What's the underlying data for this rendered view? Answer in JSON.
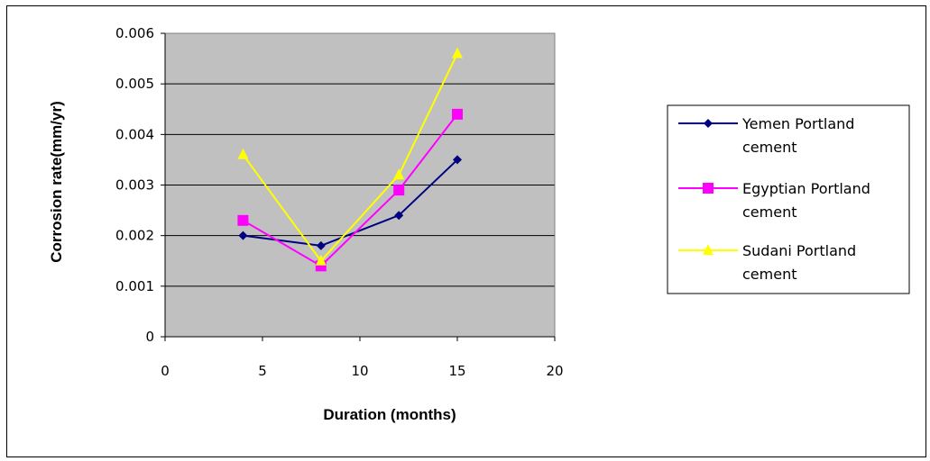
{
  "chart_data": {
    "type": "line",
    "title": "",
    "xlabel": "Duration (months)",
    "ylabel": "Corrosion rate(mm/yr)",
    "xlim": [
      0,
      20
    ],
    "ylim": [
      0,
      0.006
    ],
    "x_ticks": [
      "0",
      "5",
      "10",
      "15",
      "20"
    ],
    "y_ticks": [
      "0",
      "0.001",
      "0.002",
      "0.003",
      "0.004",
      "0.005",
      "0.006"
    ],
    "grid": "horizontal major gridlines",
    "plot_background": "#c0c0c0",
    "legend_position": "right",
    "series": [
      {
        "name": "Yemen  Portland cement",
        "legend_lines": [
          "Yemen  Portland",
          "cement"
        ],
        "color": "#000080",
        "marker": "diamond",
        "x": [
          4,
          8,
          12,
          15
        ],
        "y": [
          0.002,
          0.0018,
          0.0024,
          0.0035
        ]
      },
      {
        "name": "Egyptian Portland cement",
        "legend_lines": [
          "Egyptian Portland",
          "cement"
        ],
        "color": "#ff00ff",
        "marker": "square",
        "x": [
          4,
          8,
          12,
          15
        ],
        "y": [
          0.0023,
          0.0014,
          0.0029,
          0.0044
        ]
      },
      {
        "name": "Sudani Portland cement",
        "legend_lines": [
          "Sudani Portland",
          "cement"
        ],
        "color": "#ffff00",
        "marker": "triangle",
        "x": [
          4,
          8,
          12,
          15
        ],
        "y": [
          0.0036,
          0.0015,
          0.0032,
          0.0056
        ]
      }
    ]
  }
}
